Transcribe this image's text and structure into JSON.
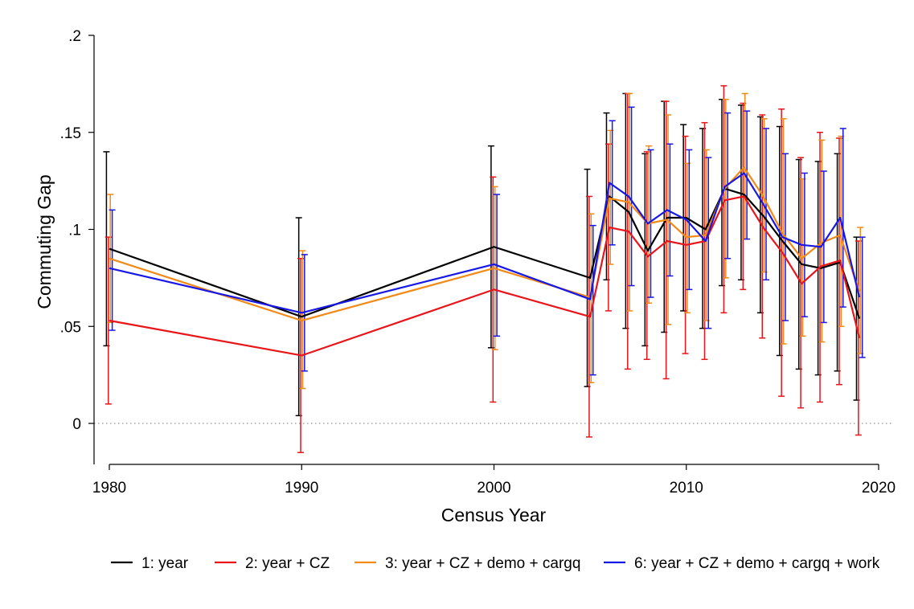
{
  "chart_data": {
    "type": "line",
    "title": "",
    "xlabel": "Census Year",
    "ylabel": "Commuting Gap",
    "xlim": [
      1980,
      2020
    ],
    "ylim": [
      -0.02,
      0.2
    ],
    "x_ticks": [
      1980,
      1990,
      2000,
      2010,
      2020
    ],
    "x_tick_labels": [
      "1980",
      "1990",
      "2000",
      "2010",
      "2020"
    ],
    "y_ticks": [
      0,
      0.05,
      0.1,
      0.15,
      0.2
    ],
    "y_tick_labels": [
      "0",
      ".05",
      ".1",
      ".15",
      ".2"
    ],
    "reference_line": {
      "y": 0,
      "style": "dotted"
    },
    "grid": false,
    "legend_position": "bottom",
    "x": [
      1980,
      1990,
      2000,
      2005,
      2006,
      2007,
      2008,
      2009,
      2010,
      2011,
      2012,
      2013,
      2014,
      2015,
      2016,
      2017,
      2018,
      2019
    ],
    "series": [
      {
        "name": "1: year",
        "color": "#000000",
        "offset": -0.15,
        "values": [
          0.09,
          0.055,
          0.091,
          0.075,
          0.117,
          0.109,
          0.089,
          0.106,
          0.106,
          0.1,
          0.121,
          0.118,
          0.107,
          0.094,
          0.082,
          0.08,
          0.083,
          0.054
        ],
        "ci_low": [
          0.04,
          0.004,
          0.039,
          0.019,
          0.074,
          0.049,
          0.04,
          0.047,
          0.058,
          0.049,
          0.071,
          0.074,
          0.057,
          0.035,
          0.028,
          0.025,
          0.027,
          0.012
        ],
        "ci_high": [
          0.14,
          0.106,
          0.143,
          0.131,
          0.16,
          0.17,
          0.139,
          0.166,
          0.154,
          0.152,
          0.167,
          0.164,
          0.158,
          0.153,
          0.136,
          0.135,
          0.139,
          0.096
        ]
      },
      {
        "name": "2: year + CZ",
        "color": "#e8151a",
        "offset": -0.05,
        "values": [
          0.053,
          0.035,
          0.069,
          0.055,
          0.101,
          0.099,
          0.086,
          0.094,
          0.092,
          0.094,
          0.115,
          0.117,
          0.101,
          0.088,
          0.072,
          0.081,
          0.084,
          0.044
        ],
        "ci_low": [
          0.01,
          -0.015,
          0.011,
          -0.007,
          0.058,
          0.028,
          0.033,
          0.023,
          0.036,
          0.033,
          0.057,
          0.069,
          0.044,
          0.014,
          0.008,
          0.011,
          0.02,
          -0.006
        ],
        "ci_high": [
          0.096,
          0.085,
          0.127,
          0.117,
          0.144,
          0.17,
          0.14,
          0.166,
          0.148,
          0.155,
          0.174,
          0.165,
          0.159,
          0.162,
          0.137,
          0.15,
          0.147,
          0.094
        ]
      },
      {
        "name": "3: year + CZ + demo + cargq",
        "color": "#f28a17",
        "offset": 0.05,
        "values": [
          0.085,
          0.053,
          0.08,
          0.065,
          0.116,
          0.114,
          0.103,
          0.105,
          0.096,
          0.097,
          0.121,
          0.132,
          0.117,
          0.098,
          0.085,
          0.093,
          0.097,
          0.068
        ],
        "ci_low": [
          0.052,
          0.018,
          0.038,
          0.021,
          0.082,
          0.058,
          0.062,
          0.051,
          0.057,
          0.053,
          0.075,
          0.095,
          0.078,
          0.041,
          0.045,
          0.042,
          0.05,
          0.036
        ],
        "ci_high": [
          0.118,
          0.089,
          0.122,
          0.108,
          0.151,
          0.17,
          0.143,
          0.159,
          0.134,
          0.141,
          0.167,
          0.17,
          0.157,
          0.157,
          0.126,
          0.146,
          0.148,
          0.101
        ]
      },
      {
        "name": "6: year + CZ + demo + cargq + work",
        "color": "#1717e6",
        "offset": 0.15,
        "values": [
          0.08,
          0.057,
          0.082,
          0.064,
          0.124,
          0.117,
          0.103,
          0.11,
          0.105,
          0.094,
          0.122,
          0.129,
          0.113,
          0.096,
          0.092,
          0.091,
          0.106,
          0.065
        ],
        "ci_low": [
          0.048,
          0.027,
          0.045,
          0.025,
          0.092,
          0.071,
          0.065,
          0.076,
          0.069,
          0.049,
          0.085,
          0.095,
          0.074,
          0.053,
          0.055,
          0.052,
          0.06,
          0.034
        ],
        "ci_high": [
          0.11,
          0.087,
          0.118,
          0.102,
          0.156,
          0.163,
          0.141,
          0.144,
          0.141,
          0.137,
          0.16,
          0.161,
          0.152,
          0.139,
          0.129,
          0.13,
          0.152,
          0.096
        ]
      }
    ]
  }
}
